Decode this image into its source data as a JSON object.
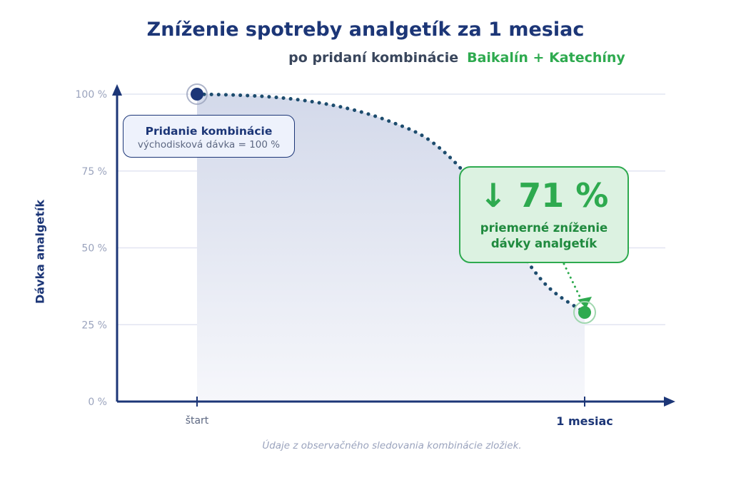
{
  "title": "Zníženie spotreby analgetík za 1 mesiac",
  "subtitle": {
    "prefix": "po pridaní kombinácie",
    "accent": "Baikalín + Katechíny"
  },
  "ylabel": "Dávka analgetík",
  "note": "Údaje z observačného sledovania kombinácie zložiek.",
  "callout_start": {
    "heading": "Pridanie kombinácie",
    "sub": "východisková dávka = 100 %"
  },
  "callout_drop": {
    "value": "↓ 71 %",
    "line1": "priemerné zníženie",
    "line2": "dávky analgetík"
  },
  "colors": {
    "axis": "#1c3677",
    "curve": "#1d4c6e",
    "accent_green": "#2eaa4f",
    "grid": "#e2e5f2",
    "fill_top": "#d3d9ea"
  },
  "chart_data": {
    "type": "line",
    "x": [
      "štart",
      "1 mesiac"
    ],
    "ylim": [
      0,
      100
    ],
    "yticks": [
      0,
      25,
      50,
      75,
      100
    ],
    "ytick_labels": [
      "0 %",
      "25 %",
      "50 %",
      "75 %",
      "100 %"
    ],
    "xtick_labels": [
      "štart",
      "1 mesiac"
    ],
    "ylabel": "Dávka analgetík",
    "series": [
      {
        "values": [
          100,
          29
        ],
        "curve_samples_x": [
          0,
          0.1,
          0.2,
          0.3,
          0.4,
          0.5,
          0.6,
          0.7,
          0.8,
          0.9,
          1.0
        ],
        "curve_samples_y": [
          100,
          99.7,
          99,
          97.5,
          95,
          91,
          85,
          73,
          55,
          38,
          29
        ]
      }
    ],
    "grid": true,
    "reduction_percent": 71
  }
}
